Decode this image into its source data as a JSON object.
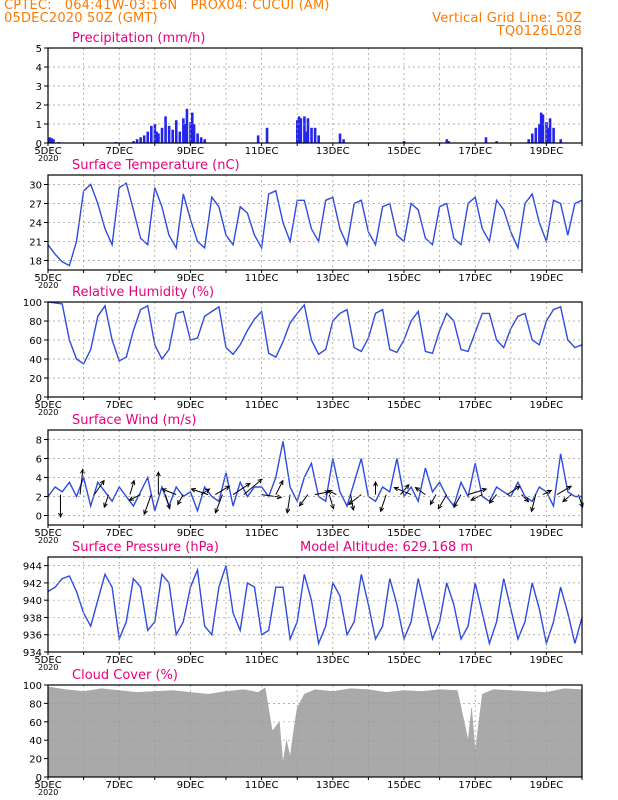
{
  "header": {
    "line1_left": "CPTEC:   064:41W-03:16N   PROX04: CUCUI (AM)",
    "line2_left": "05DEC2020 50Z (GMT)",
    "line1_right": "Vertical Grid Line: 50Z",
    "line2_right": "TQ0126L028"
  },
  "colors": {
    "header": "#ff7a00",
    "title": "#e8007c",
    "series": "#2e4be0",
    "bars": "#2424f0",
    "cloud": "#a9a9a9",
    "grid": "#999999"
  },
  "x_axis": {
    "range_days": [
      5,
      20
    ],
    "tick_labels": [
      "5DEC",
      "7DEC",
      "9DEC",
      "11DEC",
      "13DEC",
      "15DEC",
      "17DEC",
      "19DEC"
    ],
    "tick_days": [
      5,
      7,
      9,
      11,
      13,
      15,
      17,
      19
    ],
    "corner_label": "2020"
  },
  "chart_data": [
    {
      "type": "bar",
      "title": "Precipitation (mm/h)",
      "ylim": [
        0,
        5
      ],
      "yticks": [
        "0",
        "1",
        "2",
        "3",
        "4",
        "5"
      ],
      "x": [
        5.05,
        5.1,
        5.15,
        5.3,
        6.9,
        7.4,
        7.5,
        7.6,
        7.7,
        7.8,
        7.9,
        8.0,
        8.05,
        8.1,
        8.2,
        8.3,
        8.4,
        8.5,
        8.6,
        8.7,
        8.8,
        8.85,
        8.9,
        9.0,
        9.05,
        9.1,
        9.2,
        9.3,
        9.4,
        10.9,
        11.15,
        12.0,
        12.05,
        12.1,
        12.2,
        12.25,
        12.3,
        12.4,
        12.5,
        12.6,
        13.2,
        13.3,
        15.0,
        16.2,
        16.25,
        17.3,
        17.6,
        18.5,
        18.6,
        18.7,
        18.8,
        18.85,
        18.9,
        19.0,
        19.05,
        19.1,
        19.2,
        19.4
      ],
      "values": [
        0.3,
        0.25,
        0.2,
        0.05,
        0.05,
        0.1,
        0.2,
        0.3,
        0.4,
        0.6,
        0.9,
        1.0,
        0.6,
        0.5,
        0.8,
        1.4,
        0.9,
        0.7,
        1.2,
        0.6,
        1.3,
        1.0,
        1.8,
        1.1,
        1.6,
        1.0,
        0.5,
        0.3,
        0.2,
        0.4,
        0.8,
        1.2,
        1.4,
        1.3,
        1.4,
        0.6,
        1.3,
        0.8,
        0.8,
        0.4,
        0.5,
        0.2,
        0.1,
        0.2,
        0.1,
        0.3,
        0.1,
        0.2,
        0.5,
        0.8,
        1.0,
        1.6,
        1.5,
        1.1,
        0.8,
        1.3,
        0.8,
        0.2
      ]
    },
    {
      "type": "line",
      "title": "Surface Temperature (nC)",
      "ylim": [
        16.5,
        31.5
      ],
      "yticks": [
        "18",
        "21",
        "24",
        "27",
        "30"
      ],
      "x": [
        5.0,
        5.2,
        5.4,
        5.6,
        5.8,
        6.0,
        6.2,
        6.4,
        6.6,
        6.8,
        7.0,
        7.2,
        7.4,
        7.6,
        7.8,
        8.0,
        8.2,
        8.4,
        8.6,
        8.8,
        9.0,
        9.2,
        9.4,
        9.6,
        9.8,
        10.0,
        10.2,
        10.4,
        10.6,
        10.8,
        11.0,
        11.2,
        11.4,
        11.6,
        11.8,
        12.0,
        12.2,
        12.4,
        12.6,
        12.8,
        13.0,
        13.2,
        13.4,
        13.6,
        13.8,
        14.0,
        14.2,
        14.4,
        14.6,
        14.8,
        15.0,
        15.2,
        15.4,
        15.6,
        15.8,
        16.0,
        16.2,
        16.4,
        16.6,
        16.8,
        17.0,
        17.2,
        17.4,
        17.6,
        17.8,
        18.0,
        18.2,
        18.4,
        18.6,
        18.8,
        19.0,
        19.2,
        19.4,
        19.6,
        19.8,
        20.0
      ],
      "values": [
        20.5,
        19.0,
        17.8,
        17.2,
        21.0,
        29.0,
        30.0,
        27.0,
        23.0,
        20.5,
        29.5,
        30.2,
        26.0,
        21.5,
        20.5,
        29.5,
        26.5,
        22.0,
        20.0,
        28.5,
        24.5,
        21.0,
        20.0,
        28.0,
        26.5,
        22.0,
        20.5,
        26.5,
        25.5,
        22.0,
        20.0,
        28.5,
        29.0,
        24.0,
        21.0,
        27.5,
        27.5,
        23.0,
        21.0,
        27.5,
        28.0,
        23.0,
        20.5,
        27.0,
        27.5,
        22.5,
        20.5,
        26.5,
        27.0,
        22.0,
        21.0,
        27.0,
        26.0,
        21.5,
        20.5,
        26.5,
        27.0,
        21.5,
        20.5,
        27.0,
        28.0,
        23.0,
        21.0,
        27.5,
        26.0,
        22.5,
        20.0,
        27.0,
        28.5,
        24.0,
        21.0,
        27.5,
        27.0,
        22.0,
        27.0,
        27.5
      ]
    },
    {
      "type": "line",
      "title": "Relative Humidity (%)",
      "ylim": [
        0,
        100
      ],
      "yticks": [
        "0",
        "20",
        "40",
        "60",
        "80",
        "100"
      ],
      "x": [
        5.0,
        5.2,
        5.4,
        5.6,
        5.8,
        6.0,
        6.2,
        6.4,
        6.6,
        6.8,
        7.0,
        7.2,
        7.4,
        7.6,
        7.8,
        8.0,
        8.2,
        8.4,
        8.6,
        8.8,
        9.0,
        9.2,
        9.4,
        9.6,
        9.8,
        10.0,
        10.2,
        10.4,
        10.6,
        10.8,
        11.0,
        11.2,
        11.4,
        11.6,
        11.8,
        12.0,
        12.2,
        12.4,
        12.6,
        12.8,
        13.0,
        13.2,
        13.4,
        13.6,
        13.8,
        14.0,
        14.2,
        14.4,
        14.6,
        14.8,
        15.0,
        15.2,
        15.4,
        15.6,
        15.8,
        16.0,
        16.2,
        16.4,
        16.6,
        16.8,
        17.0,
        17.2,
        17.4,
        17.6,
        17.8,
        18.0,
        18.2,
        18.4,
        18.6,
        18.8,
        19.0,
        19.2,
        19.4,
        19.6,
        19.8,
        20.0
      ],
      "values": [
        100,
        99,
        98,
        60,
        40,
        35,
        50,
        85,
        96,
        60,
        38,
        42,
        70,
        92,
        96,
        55,
        40,
        50,
        88,
        90,
        60,
        62,
        85,
        90,
        95,
        52,
        45,
        55,
        70,
        82,
        90,
        46,
        42,
        58,
        78,
        88,
        97,
        60,
        45,
        50,
        80,
        88,
        92,
        52,
        48,
        62,
        88,
        92,
        50,
        47,
        60,
        80,
        90,
        48,
        46,
        70,
        88,
        80,
        50,
        48,
        68,
        88,
        88,
        60,
        52,
        72,
        85,
        88,
        60,
        55,
        80,
        92,
        95,
        60,
        52,
        55
      ]
    },
    {
      "type": "line",
      "title": "Surface Wind (m/s)",
      "ylim": [
        -1,
        9
      ],
      "yticks": [
        "0",
        "2",
        "4",
        "6",
        "8"
      ],
      "x": [
        5.0,
        5.2,
        5.4,
        5.6,
        5.8,
        6.0,
        6.2,
        6.4,
        6.6,
        6.8,
        7.0,
        7.2,
        7.4,
        7.6,
        7.8,
        8.0,
        8.2,
        8.4,
        8.6,
        8.8,
        9.0,
        9.2,
        9.4,
        9.6,
        9.8,
        10.0,
        10.2,
        10.4,
        10.6,
        10.8,
        11.0,
        11.2,
        11.4,
        11.6,
        11.8,
        12.0,
        12.2,
        12.4,
        12.6,
        12.8,
        13.0,
        13.2,
        13.4,
        13.6,
        13.8,
        14.0,
        14.2,
        14.4,
        14.6,
        14.8,
        15.0,
        15.2,
        15.4,
        15.6,
        15.8,
        16.0,
        16.2,
        16.4,
        16.6,
        16.8,
        17.0,
        17.2,
        17.4,
        17.6,
        17.8,
        18.0,
        18.2,
        18.4,
        18.6,
        18.8,
        19.0,
        19.2,
        19.4,
        19.6,
        19.8,
        20.0
      ],
      "values": [
        2.0,
        3.0,
        2.5,
        3.5,
        2.0,
        4.0,
        1.0,
        3.5,
        2.5,
        1.5,
        3.0,
        2.0,
        1.0,
        2.5,
        4.0,
        0.5,
        3.0,
        1.0,
        3.0,
        2.0,
        2.5,
        0.5,
        3.0,
        2.0,
        1.5,
        4.5,
        1.0,
        3.5,
        2.0,
        3.0,
        3.0,
        2.0,
        4.0,
        7.8,
        3.0,
        1.5,
        4.0,
        5.5,
        2.0,
        1.5,
        6.0,
        2.5,
        1.0,
        3.5,
        6.0,
        2.0,
        1.5,
        3.0,
        2.5,
        6.0,
        2.0,
        3.0,
        1.5,
        5.0,
        2.5,
        3.5,
        2.0,
        1.0,
        3.5,
        2.0,
        5.5,
        2.0,
        1.5,
        3.0,
        2.5,
        2.0,
        3.5,
        2.0,
        1.5,
        3.0,
        2.5,
        1.0,
        6.5,
        2.5,
        2.0,
        2.0
      ],
      "arrows": [
        {
          "day": 5.35,
          "u": 0,
          "v": -1.6
        },
        {
          "day": 5.9,
          "u": 0.2,
          "v": 1.8
        },
        {
          "day": 6.3,
          "u": 0.7,
          "v": 1.0
        },
        {
          "day": 6.7,
          "u": -0.3,
          "v": -0.9
        },
        {
          "day": 7.3,
          "u": 0.3,
          "v": 1.0
        },
        {
          "day": 7.6,
          "u": -0.8,
          "v": -0.4
        },
        {
          "day": 7.9,
          "u": -0.5,
          "v": -1.4
        },
        {
          "day": 8.1,
          "u": 0,
          "v": 1.6
        },
        {
          "day": 8.3,
          "u": 0.3,
          "v": -1.0
        },
        {
          "day": 8.6,
          "u": -1.0,
          "v": 0.4
        },
        {
          "day": 8.8,
          "u": -0.4,
          "v": -0.7
        },
        {
          "day": 9.3,
          "u": 0.6,
          "v": 0.4
        },
        {
          "day": 9.5,
          "u": -1.2,
          "v": 0.4
        },
        {
          "day": 9.7,
          "u": 1.0,
          "v": 0.6
        },
        {
          "day": 9.9,
          "u": -0.5,
          "v": -1.3
        },
        {
          "day": 10.2,
          "u": 1.2,
          "v": 0.8
        },
        {
          "day": 10.5,
          "u": 1.3,
          "v": 1.1
        },
        {
          "day": 11.0,
          "u": 1.4,
          "v": -0.2
        },
        {
          "day": 11.4,
          "u": 0.5,
          "v": 1.0
        },
        {
          "day": 11.8,
          "u": -0.2,
          "v": -1.3
        },
        {
          "day": 12.3,
          "u": -0.6,
          "v": -0.8
        },
        {
          "day": 12.5,
          "u": 1.0,
          "v": 0.2
        },
        {
          "day": 12.9,
          "u": 0.3,
          "v": -1.0
        },
        {
          "day": 13.1,
          "u": -0.6,
          "v": 0.3
        },
        {
          "day": 13.5,
          "u": 0.2,
          "v": -1.1
        },
        {
          "day": 13.8,
          "u": -0.9,
          "v": -0.7
        },
        {
          "day": 14.2,
          "u": 0,
          "v": 0.9
        },
        {
          "day": 14.5,
          "u": -0.4,
          "v": -1.2
        },
        {
          "day": 14.9,
          "u": 0.6,
          "v": 0.7
        },
        {
          "day": 15.2,
          "u": -1.2,
          "v": 0.5
        },
        {
          "day": 15.6,
          "u": -0.7,
          "v": 0.5
        },
        {
          "day": 15.9,
          "u": -0.4,
          "v": -0.7
        },
        {
          "day": 16.2,
          "u": -0.6,
          "v": -1.0
        },
        {
          "day": 16.6,
          "u": -0.5,
          "v": -0.9
        },
        {
          "day": 16.8,
          "u": 1.3,
          "v": 0.4
        },
        {
          "day": 17.2,
          "u": -0.8,
          "v": -0.4
        },
        {
          "day": 17.6,
          "u": -0.5,
          "v": -0.6
        },
        {
          "day": 17.9,
          "u": 0.9,
          "v": 0.6
        },
        {
          "day": 18.3,
          "u": 0.5,
          "v": -0.5
        },
        {
          "day": 18.7,
          "u": -0.3,
          "v": -1.2
        },
        {
          "day": 18.9,
          "u": 0.6,
          "v": 0.3
        },
        {
          "day": 19.3,
          "u": 1.0,
          "v": 0.6
        },
        {
          "day": 19.7,
          "u": -0.6,
          "v": -0.5
        },
        {
          "day": 19.9,
          "u": 0.3,
          "v": -0.9
        }
      ]
    },
    {
      "type": "line",
      "title": "Surface Pressure (hPa)",
      "subtitle": "Model Altitude: 629.168  m",
      "ylim": [
        934,
        945
      ],
      "yticks": [
        "934",
        "936",
        "938",
        "940",
        "942",
        "944"
      ],
      "x": [
        5.0,
        5.2,
        5.4,
        5.6,
        5.8,
        6.0,
        6.2,
        6.4,
        6.6,
        6.8,
        7.0,
        7.2,
        7.4,
        7.6,
        7.8,
        8.0,
        8.2,
        8.4,
        8.6,
        8.8,
        9.0,
        9.2,
        9.4,
        9.6,
        9.8,
        10.0,
        10.2,
        10.4,
        10.6,
        10.8,
        11.0,
        11.2,
        11.4,
        11.6,
        11.8,
        12.0,
        12.2,
        12.4,
        12.6,
        12.8,
        13.0,
        13.2,
        13.4,
        13.6,
        13.8,
        14.0,
        14.2,
        14.4,
        14.6,
        14.8,
        15.0,
        15.2,
        15.4,
        15.6,
        15.8,
        16.0,
        16.2,
        16.4,
        16.6,
        16.8,
        17.0,
        17.2,
        17.4,
        17.6,
        17.8,
        18.0,
        18.2,
        18.4,
        18.6,
        18.8,
        19.0,
        19.2,
        19.4,
        19.6,
        19.8,
        20.0
      ],
      "values": [
        941.0,
        941.5,
        942.5,
        942.8,
        941.0,
        938.5,
        937.0,
        940.0,
        943.0,
        941.5,
        935.5,
        937.5,
        942.5,
        941.5,
        936.5,
        937.5,
        943.0,
        942.0,
        936.0,
        937.5,
        941.5,
        943.5,
        937.0,
        936.0,
        941.5,
        944.0,
        938.5,
        936.5,
        942.0,
        941.5,
        936.0,
        936.5,
        941.5,
        941.5,
        935.5,
        937.5,
        943.0,
        940.0,
        935.0,
        937.0,
        942.0,
        940.5,
        936.0,
        937.5,
        943.0,
        939.5,
        935.5,
        937.0,
        942.5,
        939.5,
        935.5,
        937.5,
        942.5,
        939.0,
        935.5,
        937.5,
        942.0,
        939.5,
        935.5,
        937.0,
        942.0,
        938.5,
        935.0,
        937.5,
        942.5,
        939.0,
        935.5,
        937.5,
        942.0,
        939.0,
        935.0,
        937.5,
        941.5,
        938.5,
        935.0,
        938.0
      ]
    },
    {
      "type": "area",
      "title": "Cloud Cover (%)",
      "ylim": [
        0,
        100
      ],
      "yticks": [
        "0",
        "20",
        "40",
        "60",
        "80",
        "100"
      ],
      "x": [
        5.0,
        5.5,
        6.0,
        6.5,
        7.0,
        7.5,
        8.0,
        8.5,
        9.0,
        9.5,
        10.0,
        10.5,
        10.9,
        11.1,
        11.3,
        11.5,
        11.6,
        11.7,
        11.8,
        11.9,
        12.0,
        12.2,
        12.5,
        13.0,
        13.5,
        14.0,
        14.5,
        15.0,
        15.5,
        16.0,
        16.5,
        16.8,
        16.9,
        17.0,
        17.2,
        17.5,
        18.0,
        18.5,
        19.0,
        19.5,
        20.0
      ],
      "values": [
        98,
        95,
        93,
        96,
        94,
        92,
        93,
        94,
        92,
        90,
        93,
        95,
        92,
        97,
        50,
        60,
        15,
        40,
        22,
        50,
        75,
        90,
        95,
        93,
        96,
        95,
        92,
        94,
        93,
        95,
        94,
        40,
        75,
        28,
        90,
        95,
        94,
        93,
        92,
        96,
        95
      ]
    }
  ]
}
